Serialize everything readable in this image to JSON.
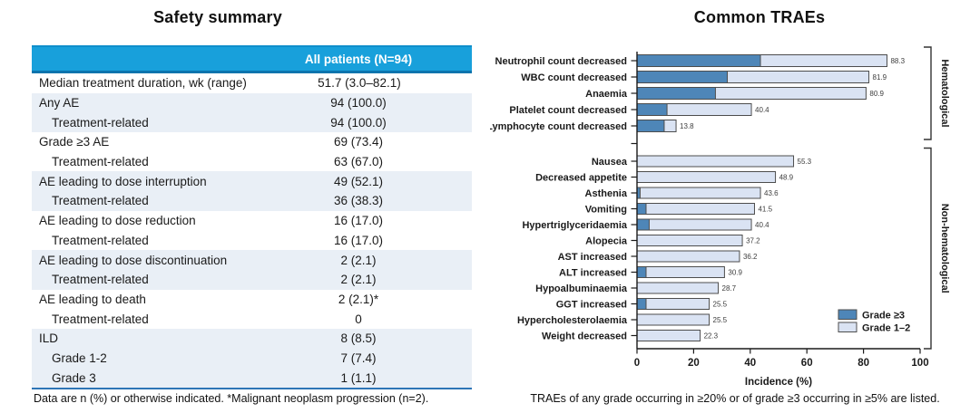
{
  "left_panel": {
    "title": "Safety summary",
    "table": {
      "header": {
        "label_column": "",
        "value_column": "All patients (N=94)"
      },
      "rows": [
        {
          "label": "Median treatment duration, wk (range)",
          "value": "51.7 (3.0–82.1)",
          "indent": false,
          "shaded": false
        },
        {
          "label": "Any AE",
          "value": "94 (100.0)",
          "indent": false,
          "shaded": true
        },
        {
          "label": "Treatment-related",
          "value": "94 (100.0)",
          "indent": true,
          "shaded": true
        },
        {
          "label": "Grade ≥3 AE",
          "value": "69 (73.4)",
          "indent": false,
          "shaded": false
        },
        {
          "label": "Treatment-related",
          "value": "63 (67.0)",
          "indent": true,
          "shaded": false
        },
        {
          "label": "AE leading to dose interruption",
          "value": "49 (52.1)",
          "indent": false,
          "shaded": true
        },
        {
          "label": "Treatment-related",
          "value": "36 (38.3)",
          "indent": true,
          "shaded": true
        },
        {
          "label": "AE leading to dose reduction",
          "value": "16 (17.0)",
          "indent": false,
          "shaded": false
        },
        {
          "label": "Treatment-related",
          "value": "16 (17.0)",
          "indent": true,
          "shaded": false
        },
        {
          "label": "AE leading to dose discontinuation",
          "value": "2 (2.1)",
          "indent": false,
          "shaded": true
        },
        {
          "label": "Treatment-related",
          "value": "2 (2.1)",
          "indent": true,
          "shaded": true
        },
        {
          "label": "AE leading to death",
          "value": "2 (2.1)*",
          "indent": false,
          "shaded": false
        },
        {
          "label": "Treatment-related",
          "value": "0",
          "indent": true,
          "shaded": false
        },
        {
          "label": "ILD",
          "value": "8 (8.5)",
          "indent": false,
          "shaded": true
        },
        {
          "label": "Grade 1-2",
          "value": "7 (7.4)",
          "indent": true,
          "shaded": true
        },
        {
          "label": "Grade 3",
          "value": "1 (1.1)",
          "indent": true,
          "shaded": true
        }
      ]
    },
    "footnote": "Data are n (%) or otherwise indicated. *Malignant neoplasm progression (n=2)."
  },
  "right_panel": {
    "title": "Common TRAEs",
    "footnote": "TRAEs of any grade occurring in ≥20% or of grade ≥3 occurring in ≥5% are listed."
  },
  "chart_data": {
    "type": "bar",
    "orientation": "horizontal",
    "stacked": true,
    "xlabel": "Incidence (%)",
    "xlim": [
      0,
      100
    ],
    "x_ticks": [
      0,
      20,
      40,
      60,
      80,
      100
    ],
    "grid": false,
    "legend_position": "lower-right-inside",
    "legend": [
      {
        "name": "Grade ≥3",
        "color": "#4e86b8"
      },
      {
        "name": "Grade 1–2",
        "color": "#dae3f3"
      }
    ],
    "value_labels": "total shown at end of each bar",
    "groups": [
      {
        "name": "Hematological",
        "rows": [
          {
            "label": "Neutrophil count decreased",
            "total": 88.3,
            "grade3": 43.6
          },
          {
            "label": "WBC count decreased",
            "total": 81.9,
            "grade3": 31.9
          },
          {
            "label": "Anaemia",
            "total": 80.9,
            "grade3": 27.7
          },
          {
            "label": "Platelet count decreased",
            "total": 40.4,
            "grade3": 10.6
          },
          {
            "label": "Lymphocyte count decreased",
            "total": 13.8,
            "grade3": 9.6
          }
        ]
      },
      {
        "name": "Non-hematological",
        "rows": [
          {
            "label": "Nausea",
            "total": 55.3,
            "grade3": 0
          },
          {
            "label": "Decreased appetite",
            "total": 48.9,
            "grade3": 0
          },
          {
            "label": "Asthenia",
            "total": 43.6,
            "grade3": 1.1
          },
          {
            "label": "Vomiting",
            "total": 41.5,
            "grade3": 3.2
          },
          {
            "label": "Hypertriglyceridaemia",
            "total": 40.4,
            "grade3": 4.3
          },
          {
            "label": "Alopecia",
            "total": 37.2,
            "grade3": 0
          },
          {
            "label": "AST increased",
            "total": 36.2,
            "grade3": 0
          },
          {
            "label": "ALT increased",
            "total": 30.9,
            "grade3": 3.2
          },
          {
            "label": "Hypoalbuminaemia",
            "total": 28.7,
            "grade3": 0
          },
          {
            "label": "GGT increased",
            "total": 25.5,
            "grade3": 3.2
          },
          {
            "label": "Hypercholesterolaemia",
            "total": 25.5,
            "grade3": 0
          },
          {
            "label": "Weight decreased",
            "total": 22.3,
            "grade3": 0
          }
        ]
      }
    ]
  },
  "colors": {
    "header_blue": "#18a0db",
    "header_border_dark": "#0c74ad",
    "row_shade": "#e9eff6",
    "table_bottom_border": "#2e75b6",
    "grade3_blue": "#4e86b8",
    "grade12_blue": "#dae3f3",
    "bar_border": "#4d4d4d",
    "axis_black": "#1a1a1a",
    "value_label_gray": "#3d3d3d"
  }
}
